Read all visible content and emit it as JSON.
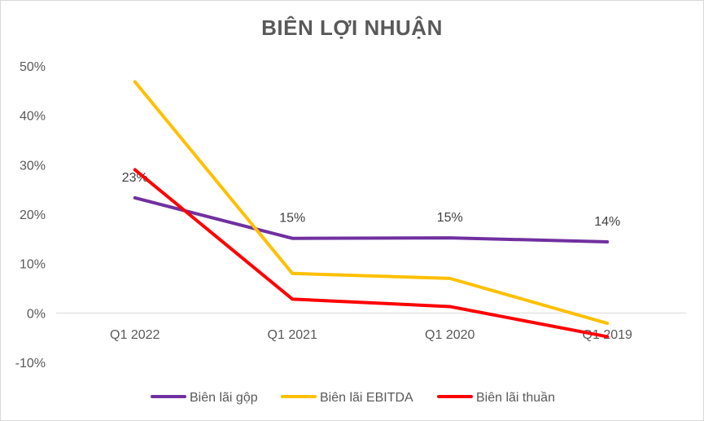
{
  "chart_data": {
    "type": "line",
    "title": "BIÊN LỢI NHUẬN",
    "categories": [
      "Q1 2022",
      "Q1 2021",
      "Q1 2020",
      "Q1 2019"
    ],
    "y_ticks": [
      "50%",
      "40%",
      "30%",
      "20%",
      "10%",
      "0%",
      "-10%"
    ],
    "ylim": [
      -10,
      50
    ],
    "y_unit": "%",
    "grid": false,
    "legend_position": "bottom",
    "series": [
      {
        "name": "Biên lãi gộp",
        "color": "#7030a0",
        "values": [
          23.3,
          15.1,
          15.2,
          14.4
        ],
        "data_labels": [
          "23%",
          "15%",
          "15%",
          "14%"
        ]
      },
      {
        "name": "Biên lãi EBITDA",
        "color": "#ffc000",
        "values": [
          46.8,
          8.0,
          7.0,
          -2.1
        ]
      },
      {
        "name": "Biên lãi thuần",
        "color": "#ff0000",
        "values": [
          29.0,
          2.8,
          1.3,
          -4.8
        ]
      }
    ]
  }
}
